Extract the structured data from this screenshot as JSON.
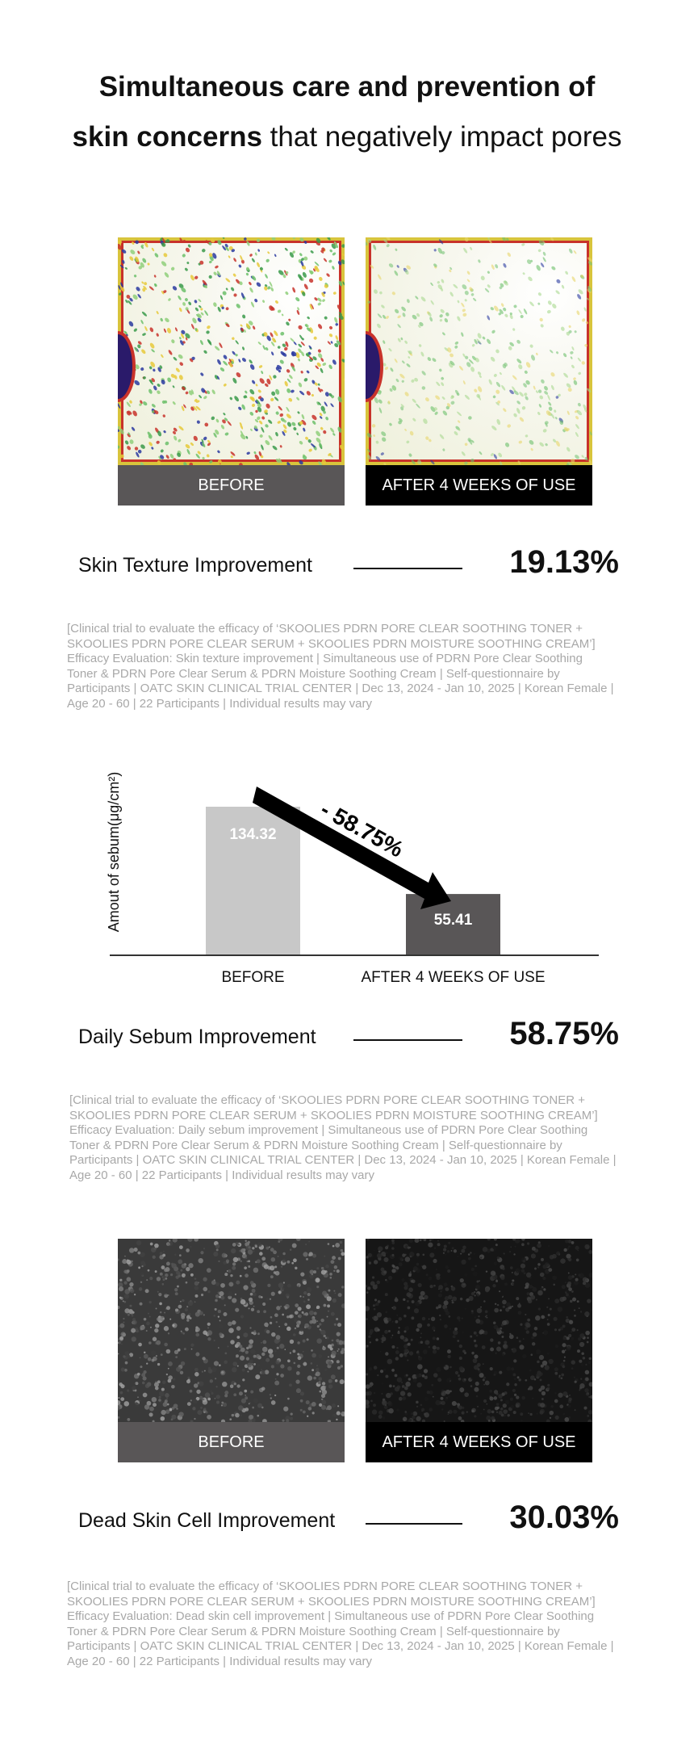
{
  "header": {
    "title_line1": "Simultaneous care and prevention of",
    "title_line2_bold": "skin concerns",
    "title_line2_rest": " that negatively impact pores"
  },
  "labels": {
    "before": "BEFORE",
    "after": "AFTER 4 WEEKS OF USE"
  },
  "sections": [
    {
      "metric": "Skin Texture Improvement",
      "value": "19.13%",
      "fine_print": [
        "[Clinical trial to evaluate the efficacy of ‘SKOOLIES PDRN PORE CLEAR SOOTHING TONER +",
        "SKOOLIES PDRN PORE CLEAR SERUM + SKOOLIES PDRN MOISTURE SOOTHING CREAM’]",
        "Efficacy Evaluation: Skin texture improvement | Simultaneous use of PDRN Pore Clear Soothing",
        "Toner & PDRN Pore Clear Serum & PDRN Moisture Soothing Cream | Self-questionnaire by",
        "Participants | OATC SKIN CLINICAL TRIAL CENTER | Dec 13, 2024 - Jan 10, 2025 | Korean Female |",
        "Age 20 - 60 | 22 Participants | Individual results may vary"
      ]
    },
    {
      "metric": "Daily Sebum Improvement",
      "value": "58.75%",
      "fine_print": [
        "[Clinical trial to evaluate the efficacy of ‘SKOOLIES PDRN PORE CLEAR SOOTHING TONER +",
        "SKOOLIES PDRN PORE CLEAR SERUM + SKOOLIES PDRN MOISTURE SOOTHING CREAM’]",
        "Efficacy Evaluation: Daily sebum improvement | Simultaneous use of PDRN Pore Clear Soothing",
        "Toner & PDRN Pore Clear Serum & PDRN Moisture Soothing Cream | Self-questionnaire by",
        "Participants | OATC SKIN CLINICAL TRIAL CENTER | Dec 13, 2024 - Jan 10, 2025 | Korean Female |",
        "Age 20 - 60 | 22 Participants | Individual results may vary"
      ]
    },
    {
      "metric": "Dead Skin Cell Improvement",
      "value": "30.03%",
      "fine_print": [
        "[Clinical trial to evaluate the efficacy of ‘SKOOLIES PDRN PORE CLEAR SOOTHING TONER +",
        "SKOOLIES PDRN PORE CLEAR SERUM + SKOOLIES PDRN MOISTURE SOOTHING CREAM’]",
        "Efficacy Evaluation: Dead skin cell improvement | Simultaneous use of PDRN Pore Clear Soothing",
        "Toner & PDRN Pore Clear Serum & PDRN Moisture Soothing Cream | Self-questionnaire by",
        "Participants | OATC SKIN CLINICAL TRIAL CENTER | Dec 13, 2024 - Jan 10, 2025 | Korean Female |",
        "Age 20 - 60 | 22 Participants | Individual results may vary"
      ]
    }
  ],
  "chart_data": {
    "type": "bar",
    "ylabel": "Amout of sebum(μg/cm²)",
    "categories": [
      "BEFORE",
      "AFTER 4 WEEKS OF USE"
    ],
    "values": [
      134.32,
      55.41
    ],
    "data_labels": [
      "134.32",
      "55.41"
    ],
    "colors": [
      "#c8c8c8",
      "#595657"
    ],
    "annotation": "- 58.75%",
    "grid": false
  }
}
